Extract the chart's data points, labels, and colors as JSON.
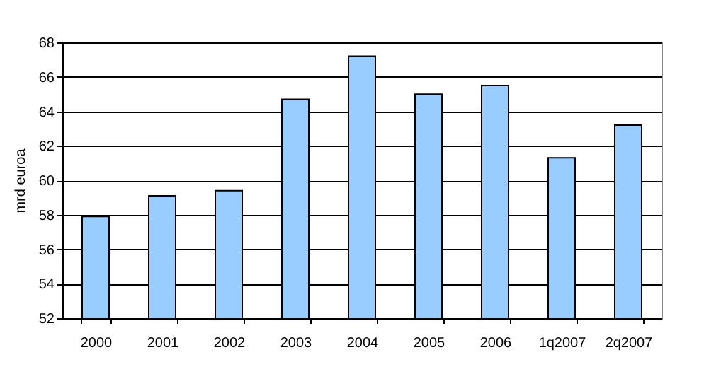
{
  "chart_data": {
    "type": "bar",
    "ylabel": "mrd euroa",
    "categories": [
      "2000",
      "2001",
      "2002",
      "2003",
      "2004",
      "2005",
      "2006",
      "1q2007",
      "2q2007"
    ],
    "values": [
      57.9,
      59.1,
      59.4,
      64.7,
      67.2,
      65.0,
      65.5,
      61.3,
      63.2
    ],
    "color": "#99ccff",
    "ylim": [
      52,
      68
    ],
    "yticks": [
      52,
      54,
      56,
      58,
      60,
      62,
      64,
      66,
      68
    ],
    "grid": "y"
  }
}
